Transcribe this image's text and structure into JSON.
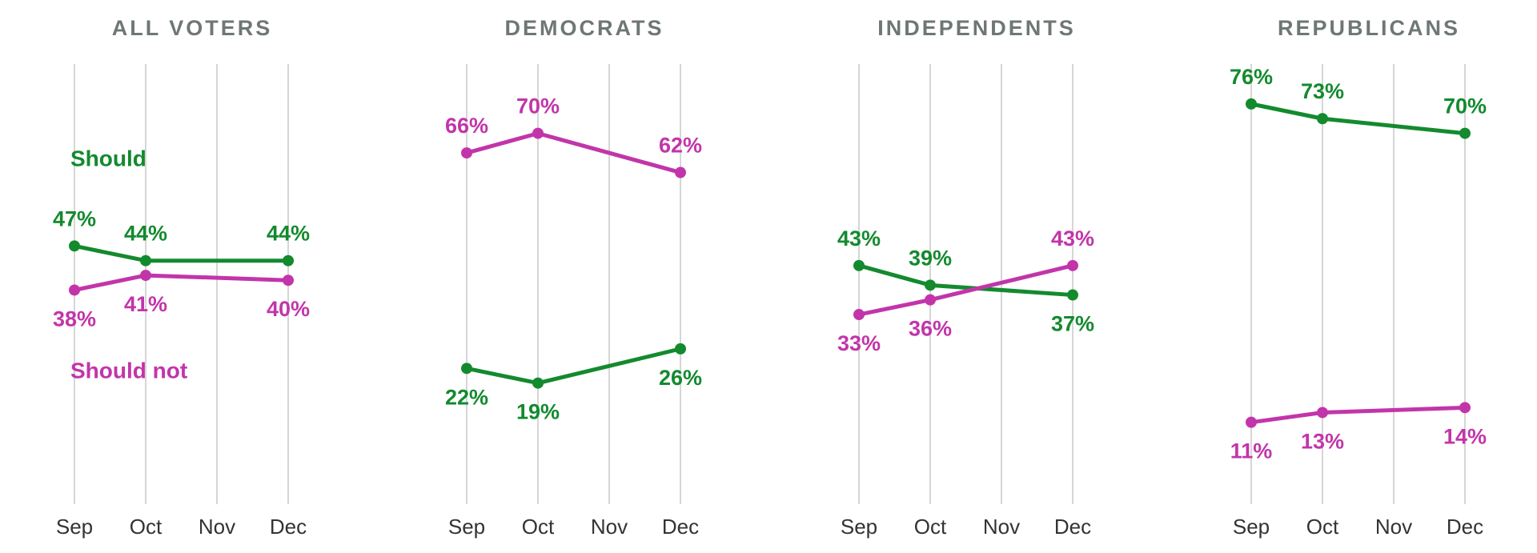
{
  "colors": {
    "should": "#138a2e",
    "should_not": "#c235aa",
    "grid": "#d6d6d6",
    "title": "#6e7776",
    "tick": "#333333"
  },
  "chart_data": [
    {
      "type": "line",
      "title": "ALL VOTERS",
      "categories": [
        "Sep",
        "Oct",
        "Nov",
        "Dec"
      ],
      "series": [
        {
          "name": "Should",
          "color": "#138a2e",
          "points": [
            {
              "x": "Sep",
              "y": 47
            },
            {
              "x": "Oct",
              "y": 44
            },
            {
              "x": "Dec",
              "y": 44
            }
          ]
        },
        {
          "name": "Should not",
          "color": "#c235aa",
          "points": [
            {
              "x": "Sep",
              "y": 38
            },
            {
              "x": "Oct",
              "y": 41
            },
            {
              "x": "Dec",
              "y": 40
            }
          ]
        }
      ],
      "ylim": [
        0,
        100
      ],
      "grid": true
    },
    {
      "type": "line",
      "title": "DEMOCRATS",
      "categories": [
        "Sep",
        "Oct",
        "Nov",
        "Dec"
      ],
      "series": [
        {
          "color": "#138a2e",
          "points": [
            {
              "x": "Sep",
              "y": 22
            },
            {
              "x": "Oct",
              "y": 19
            },
            {
              "x": "Dec",
              "y": 26
            }
          ]
        },
        {
          "color": "#c235aa",
          "points": [
            {
              "x": "Sep",
              "y": 66
            },
            {
              "x": "Oct",
              "y": 70
            },
            {
              "x": "Dec",
              "y": 62
            }
          ]
        }
      ],
      "ylim": [
        0,
        100
      ],
      "grid": true
    },
    {
      "type": "line",
      "title": "INDEPENDENTS",
      "categories": [
        "Sep",
        "Oct",
        "Nov",
        "Dec"
      ],
      "series": [
        {
          "color": "#138a2e",
          "points": [
            {
              "x": "Sep",
              "y": 43
            },
            {
              "x": "Oct",
              "y": 39
            },
            {
              "x": "Dec",
              "y": 37
            }
          ]
        },
        {
          "color": "#c235aa",
          "points": [
            {
              "x": "Sep",
              "y": 33
            },
            {
              "x": "Oct",
              "y": 36
            },
            {
              "x": "Dec",
              "y": 43
            }
          ]
        }
      ],
      "ylim": [
        0,
        100
      ],
      "grid": true
    },
    {
      "type": "line",
      "title": "REPUBLICANS",
      "categories": [
        "Sep",
        "Oct",
        "Nov",
        "Dec"
      ],
      "series": [
        {
          "color": "#138a2e",
          "points": [
            {
              "x": "Sep",
              "y": 76
            },
            {
              "x": "Oct",
              "y": 73
            },
            {
              "x": "Dec",
              "y": 70
            }
          ]
        },
        {
          "color": "#c235aa",
          "points": [
            {
              "x": "Sep",
              "y": 11
            },
            {
              "x": "Oct",
              "y": 13
            },
            {
              "x": "Dec",
              "y": 14
            }
          ]
        }
      ],
      "ylim": [
        0,
        100
      ],
      "grid": true
    }
  ]
}
